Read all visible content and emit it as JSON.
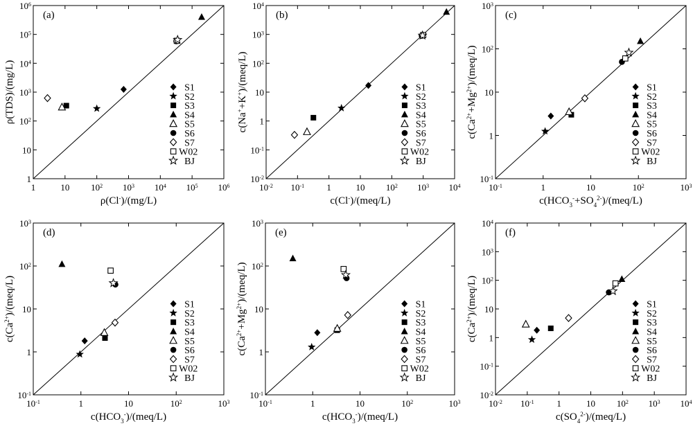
{
  "figure": {
    "series_order": [
      "S1",
      "S2",
      "S3",
      "S4",
      "S5",
      "S6",
      "S7",
      "W02",
      "BJ"
    ],
    "series_markers": {
      "S1": "filled-diamond",
      "S2": "filled-star",
      "S3": "filled-square",
      "S4": "filled-triangle",
      "S5": "open-triangle",
      "S6": "filled-circle",
      "S7": "open-diamond",
      "W02": "open-square",
      "BJ": "open-star"
    }
  },
  "chart_data": [
    {
      "type": "scatter",
      "panel": "(a)",
      "xscale": "log",
      "yscale": "log",
      "xlim": [
        1,
        1000000
      ],
      "ylim": [
        1,
        1000000
      ],
      "xticks": [
        {
          "v": 1,
          "b": "1",
          "e": ""
        },
        {
          "v": 10,
          "b": "10",
          "e": ""
        },
        {
          "v": 100,
          "b": "10",
          "e": "2"
        },
        {
          "v": 1000,
          "b": "10",
          "e": "3"
        },
        {
          "v": 10000,
          "b": "10",
          "e": "4"
        },
        {
          "v": 100000,
          "b": "10",
          "e": "5"
        },
        {
          "v": 1000000,
          "b": "10",
          "e": "6"
        }
      ],
      "yticks": [
        {
          "v": 1,
          "b": "1",
          "e": ""
        },
        {
          "v": 10,
          "b": "10",
          "e": ""
        },
        {
          "v": 100,
          "b": "10",
          "e": "2"
        },
        {
          "v": 1000,
          "b": "10",
          "e": "3"
        },
        {
          "v": 10000,
          "b": "10",
          "e": "4"
        },
        {
          "v": 100000,
          "b": "10",
          "e": "5"
        },
        {
          "v": 1000000,
          "b": "10",
          "e": "6"
        }
      ],
      "xlabel": [
        {
          "t": "ρ(Cl"
        },
        {
          "t": "-",
          "s": "sup"
        },
        {
          "t": ")/(mg/L)"
        }
      ],
      "ylabel": [
        {
          "t": "ρ(TDS)/(mg/L)"
        }
      ],
      "diagonal": true,
      "legend": [
        "S1",
        "S2",
        "S3",
        "S4",
        "S5",
        "S6",
        "S7",
        "W02",
        "BJ"
      ],
      "points": [
        {
          "s": "S1",
          "x": 700,
          "y": 1250
        },
        {
          "s": "S2",
          "x": 100,
          "y": 270
        },
        {
          "s": "S3",
          "x": 11,
          "y": 340
        },
        {
          "s": "S4",
          "x": 200000,
          "y": 400000
        },
        {
          "s": "S5",
          "x": 8,
          "y": 300
        },
        {
          "s": "S6",
          "x": 32000,
          "y": 58000
        },
        {
          "s": "S7",
          "x": 2.8,
          "y": 620
        },
        {
          "s": "W02",
          "x": 33000,
          "y": 60000
        },
        {
          "s": "BJ",
          "x": 35000,
          "y": 65000
        }
      ]
    },
    {
      "type": "scatter",
      "panel": "(b)",
      "xscale": "log",
      "yscale": "log",
      "xlim": [
        0.01,
        10000
      ],
      "ylim": [
        0.01,
        10000
      ],
      "xticks": [
        {
          "v": 0.01,
          "b": "10",
          "e": "-2"
        },
        {
          "v": 0.1,
          "b": "10",
          "e": "-1"
        },
        {
          "v": 1,
          "b": "1",
          "e": ""
        },
        {
          "v": 10,
          "b": "10",
          "e": ""
        },
        {
          "v": 100,
          "b": "10",
          "e": "2"
        },
        {
          "v": 1000,
          "b": "10",
          "e": "3"
        },
        {
          "v": 10000,
          "b": "10",
          "e": "4"
        }
      ],
      "yticks": [
        {
          "v": 0.01,
          "b": "10",
          "e": "-2"
        },
        {
          "v": 0.1,
          "b": "10",
          "e": "-1"
        },
        {
          "v": 1,
          "b": "1",
          "e": ""
        },
        {
          "v": 10,
          "b": "10",
          "e": ""
        },
        {
          "v": 100,
          "b": "10",
          "e": "2"
        },
        {
          "v": 1000,
          "b": "10",
          "e": "3"
        },
        {
          "v": 10000,
          "b": "10",
          "e": "4"
        }
      ],
      "xlabel": [
        {
          "t": "c(Cl"
        },
        {
          "t": "-",
          "s": "sup"
        },
        {
          "t": ")/(meq/L)"
        }
      ],
      "ylabel": [
        {
          "t": "c(Na"
        },
        {
          "t": "+",
          "s": "sup"
        },
        {
          "t": "+K"
        },
        {
          "t": "+",
          "s": "sup"
        },
        {
          "t": ")/(meq/L)"
        }
      ],
      "diagonal": true,
      "legend": [
        "S1",
        "S2",
        "S3",
        "S4",
        "S5",
        "S6",
        "S7",
        "W02",
        "BJ"
      ],
      "points": [
        {
          "s": "S1",
          "x": 18,
          "y": 17
        },
        {
          "s": "S2",
          "x": 2.5,
          "y": 2.8
        },
        {
          "s": "S3",
          "x": 0.32,
          "y": 1.3
        },
        {
          "s": "S4",
          "x": 5500,
          "y": 6000
        },
        {
          "s": "S5",
          "x": 0.2,
          "y": 0.42
        },
        {
          "s": "S6",
          "x": 900,
          "y": 900
        },
        {
          "s": "S7",
          "x": 0.08,
          "y": 0.33
        },
        {
          "s": "W02",
          "x": 1000,
          "y": 950
        },
        {
          "s": "BJ",
          "x": 950,
          "y": 920
        }
      ]
    },
    {
      "type": "scatter",
      "panel": "(c)",
      "xscale": "log",
      "yscale": "log",
      "xlim": [
        0.1,
        1000
      ],
      "ylim": [
        0.1,
        1000
      ],
      "xticks": [
        {
          "v": 0.1,
          "b": "10",
          "e": "-1"
        },
        {
          "v": 1,
          "b": "1",
          "e": ""
        },
        {
          "v": 10,
          "b": "10",
          "e": ""
        },
        {
          "v": 100,
          "b": "10",
          "e": "2"
        },
        {
          "v": 1000,
          "b": "10",
          "e": "3"
        }
      ],
      "yticks": [
        {
          "v": 0.1,
          "b": "10",
          "e": "-1"
        },
        {
          "v": 1,
          "b": "1",
          "e": ""
        },
        {
          "v": 10,
          "b": "10",
          "e": ""
        },
        {
          "v": 100,
          "b": "10",
          "e": "2"
        },
        {
          "v": 1000,
          "b": "10",
          "e": "3"
        }
      ],
      "xlabel": [
        {
          "t": "c(HCO"
        },
        {
          "t": "3",
          "s": "sub"
        },
        {
          "t": "-",
          "s": "sup"
        },
        {
          "t": "+SO"
        },
        {
          "t": "4",
          "s": "sub"
        },
        {
          "t": "2-",
          "s": "sup"
        },
        {
          "t": ")/(meq/L)"
        }
      ],
      "ylabel": [
        {
          "t": "c(Ca"
        },
        {
          "t": "2+",
          "s": "sup"
        },
        {
          "t": "+Mg"
        },
        {
          "t": "2+",
          "s": "sup"
        },
        {
          "t": ")/(meq/L)"
        }
      ],
      "diagonal": true,
      "legend": [
        "S1",
        "S2",
        "S3",
        "S4",
        "S5",
        "S6",
        "S7",
        "W02",
        "BJ"
      ],
      "points": [
        {
          "s": "S1",
          "x": 1.45,
          "y": 2.8
        },
        {
          "s": "S2",
          "x": 1.1,
          "y": 1.25
        },
        {
          "s": "S3",
          "x": 3.9,
          "y": 3.0
        },
        {
          "s": "S4",
          "x": 110,
          "y": 150
        },
        {
          "s": "S5",
          "x": 3.5,
          "y": 3.5
        },
        {
          "s": "S6",
          "x": 45,
          "y": 50
        },
        {
          "s": "S7",
          "x": 7.5,
          "y": 7.2
        },
        {
          "s": "W02",
          "x": 53,
          "y": 60
        },
        {
          "s": "BJ",
          "x": 63,
          "y": 82
        }
      ]
    },
    {
      "type": "scatter",
      "panel": "(d)",
      "xscale": "log",
      "yscale": "log",
      "xlim": [
        0.1,
        1000
      ],
      "ylim": [
        0.1,
        1000
      ],
      "xticks": [
        {
          "v": 0.1,
          "b": "10",
          "e": "-1"
        },
        {
          "v": 1,
          "b": "1",
          "e": ""
        },
        {
          "v": 10,
          "b": "10",
          "e": ""
        },
        {
          "v": 100,
          "b": "10",
          "e": "2"
        },
        {
          "v": 1000,
          "b": "10",
          "e": "3"
        }
      ],
      "yticks": [
        {
          "v": 0.1,
          "b": "10",
          "e": "-1"
        },
        {
          "v": 1,
          "b": "1",
          "e": ""
        },
        {
          "v": 10,
          "b": "10",
          "e": ""
        },
        {
          "v": 100,
          "b": "10",
          "e": "2"
        },
        {
          "v": 1000,
          "b": "10",
          "e": "3"
        }
      ],
      "xlabel": [
        {
          "t": "c(HCO"
        },
        {
          "t": "3",
          "s": "sub"
        },
        {
          "t": "-",
          "s": "sup"
        },
        {
          "t": ")/(meq/L)"
        }
      ],
      "ylabel": [
        {
          "t": "c(Ca"
        },
        {
          "t": "2+",
          "s": "sup"
        },
        {
          "t": ")/(meq/L)"
        }
      ],
      "diagonal": true,
      "legend": [
        "S1",
        "S2",
        "S3",
        "S4",
        "S5",
        "S6",
        "S7",
        "W02",
        "BJ"
      ],
      "points": [
        {
          "s": "S1",
          "x": 1.2,
          "y": 1.8
        },
        {
          "s": "S2",
          "x": 0.95,
          "y": 0.88
        },
        {
          "s": "S3",
          "x": 3.2,
          "y": 2.1
        },
        {
          "s": "S4",
          "x": 0.4,
          "y": 110
        },
        {
          "s": "S5",
          "x": 3.1,
          "y": 2.8
        },
        {
          "s": "S6",
          "x": 5.3,
          "y": 37
        },
        {
          "s": "S7",
          "x": 5.2,
          "y": 4.8
        },
        {
          "s": "W02",
          "x": 4.2,
          "y": 78
        },
        {
          "s": "BJ",
          "x": 4.8,
          "y": 40
        }
      ]
    },
    {
      "type": "scatter",
      "panel": "(e)",
      "xscale": "log",
      "yscale": "log",
      "xlim": [
        0.1,
        1000
      ],
      "ylim": [
        0.1,
        1000
      ],
      "xticks": [
        {
          "v": 0.1,
          "b": "10",
          "e": "-1"
        },
        {
          "v": 1,
          "b": "1",
          "e": ""
        },
        {
          "v": 10,
          "b": "10",
          "e": ""
        },
        {
          "v": 100,
          "b": "10",
          "e": "2"
        },
        {
          "v": 1000,
          "b": "10",
          "e": "3"
        }
      ],
      "yticks": [
        {
          "v": 0.1,
          "b": "10",
          "e": "-1"
        },
        {
          "v": 1,
          "b": "1",
          "e": ""
        },
        {
          "v": 10,
          "b": "10",
          "e": ""
        },
        {
          "v": 100,
          "b": "10",
          "e": "2"
        },
        {
          "v": 1000,
          "b": "10",
          "e": "3"
        }
      ],
      "xlabel": [
        {
          "t": "c(HCO"
        },
        {
          "t": "3",
          "s": "sub"
        },
        {
          "t": "-",
          "s": "sup"
        },
        {
          "t": ")/(meq/L)"
        }
      ],
      "ylabel": [
        {
          "t": "c(Ca"
        },
        {
          "t": "2+",
          "s": "sup"
        },
        {
          "t": "+Mg"
        },
        {
          "t": "2+",
          "s": "sup"
        },
        {
          "t": ")/(meq/L)"
        }
      ],
      "diagonal": true,
      "legend": [
        "S1",
        "S2",
        "S3",
        "S4",
        "S5",
        "S6",
        "S7",
        "W02",
        "BJ"
      ],
      "points": [
        {
          "s": "S1",
          "x": 1.25,
          "y": 2.8
        },
        {
          "s": "S2",
          "x": 0.95,
          "y": 1.3
        },
        {
          "s": "S3",
          "x": 3.3,
          "y": 3.2
        },
        {
          "s": "S4",
          "x": 0.38,
          "y": 150
        },
        {
          "s": "S5",
          "x": 3.3,
          "y": 3.5
        },
        {
          "s": "S6",
          "x": 5.2,
          "y": 52
        },
        {
          "s": "S7",
          "x": 5.5,
          "y": 7.2
        },
        {
          "s": "W02",
          "x": 4.5,
          "y": 85
        },
        {
          "s": "BJ",
          "x": 5.0,
          "y": 62
        }
      ]
    },
    {
      "type": "scatter",
      "panel": "(f)",
      "xscale": "log",
      "yscale": "log",
      "xlim": [
        0.01,
        10000
      ],
      "ylim": [
        0.01,
        10000
      ],
      "xticks": [
        {
          "v": 0.01,
          "b": "10",
          "e": "-2"
        },
        {
          "v": 0.1,
          "b": "10",
          "e": "-1"
        },
        {
          "v": 1,
          "b": "1",
          "e": ""
        },
        {
          "v": 10,
          "b": "10",
          "e": ""
        },
        {
          "v": 100,
          "b": "10",
          "e": "2"
        },
        {
          "v": 1000,
          "b": "10",
          "e": "3"
        },
        {
          "v": 10000,
          "b": "10",
          "e": "4"
        }
      ],
      "yticks": [
        {
          "v": 0.01,
          "b": "10",
          "e": "-2"
        },
        {
          "v": 0.1,
          "b": "10",
          "e": "-1"
        },
        {
          "v": 1,
          "b": "1",
          "e": ""
        },
        {
          "v": 10,
          "b": "10",
          "e": ""
        },
        {
          "v": 100,
          "b": "10",
          "e": "2"
        },
        {
          "v": 1000,
          "b": "10",
          "e": "3"
        },
        {
          "v": 10000,
          "b": "10",
          "e": "4"
        }
      ],
      "xlabel": [
        {
          "t": "c(SO"
        },
        {
          "t": "4",
          "s": "sub"
        },
        {
          "t": "2-",
          "s": "sup"
        },
        {
          "t": ")/(meq/L)"
        }
      ],
      "ylabel": [
        {
          "t": "c(Ca"
        },
        {
          "t": "2+",
          "s": "sup"
        },
        {
          "t": ")/(meq/L)"
        }
      ],
      "diagonal": true,
      "legend": [
        "S1",
        "S2",
        "S3",
        "S4",
        "S5",
        "S6",
        "S7",
        "W02",
        "BJ"
      ],
      "points": [
        {
          "s": "S1",
          "x": 0.2,
          "y": 1.8
        },
        {
          "s": "S2",
          "x": 0.14,
          "y": 0.85
        },
        {
          "s": "S3",
          "x": 0.55,
          "y": 2.1
        },
        {
          "s": "S4",
          "x": 95,
          "y": 110
        },
        {
          "s": "S5",
          "x": 0.09,
          "y": 2.9
        },
        {
          "s": "S6",
          "x": 37,
          "y": 38
        },
        {
          "s": "S7",
          "x": 2.0,
          "y": 4.8
        },
        {
          "s": "W02",
          "x": 60,
          "y": 78
        },
        {
          "s": "BJ",
          "x": 50,
          "y": 42
        }
      ]
    }
  ]
}
